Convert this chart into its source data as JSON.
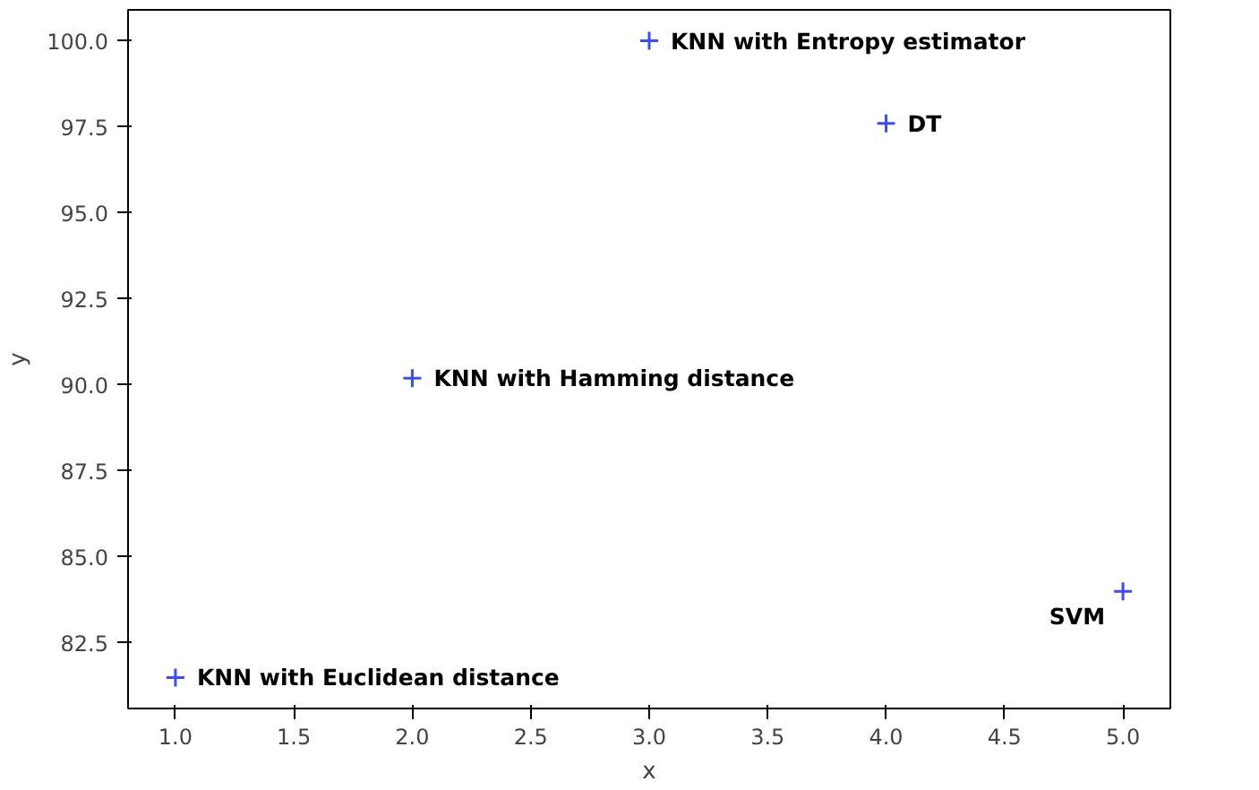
{
  "chart_data": {
    "type": "scatter",
    "xlabel": "x",
    "ylabel": "y",
    "x": [
      1,
      2,
      3,
      4,
      5
    ],
    "values": [
      81.5,
      90.2,
      100.0,
      97.6,
      84.0
    ],
    "color": "#3b4cff",
    "marker": "cross",
    "xlim": [
      0.8,
      5.2
    ],
    "ylim": [
      80.6,
      100.9
    ],
    "xticks": [
      {
        "value": 1,
        "label": "1.0"
      },
      {
        "value": 1.5,
        "label": "1.5"
      },
      {
        "value": 2,
        "label": "2.0"
      },
      {
        "value": 2.5,
        "label": "2.5"
      },
      {
        "value": 3,
        "label": "3.0"
      },
      {
        "value": 3.5,
        "label": "3.5"
      },
      {
        "value": 4,
        "label": "4.0"
      },
      {
        "value": 4.5,
        "label": "4.5"
      },
      {
        "value": 5,
        "label": "5.0"
      }
    ],
    "yticks": [
      {
        "value": 82.5,
        "label": "82.5"
      },
      {
        "value": 85,
        "label": "85.0"
      },
      {
        "value": 87.5,
        "label": "87.5"
      },
      {
        "value": 90,
        "label": "90.0"
      },
      {
        "value": 92.5,
        "label": "92.5"
      },
      {
        "value": 95,
        "label": "95.0"
      },
      {
        "value": 97.5,
        "label": "97.5"
      },
      {
        "value": 100,
        "label": "100.0"
      }
    ],
    "grid": false,
    "annotations": [
      {
        "text": "KNN with Euclidean distance",
        "x": 1,
        "y": 81.5
      },
      {
        "text": "KNN with Hamming distance",
        "x": 2,
        "y": 90.2
      },
      {
        "text": "KNN with Entropy estimator",
        "x": 3,
        "y": 100.0
      },
      {
        "text": "DT",
        "x": 4,
        "y": 97.6
      },
      {
        "text": "SVM",
        "x": 5,
        "y": 84.0
      }
    ]
  }
}
